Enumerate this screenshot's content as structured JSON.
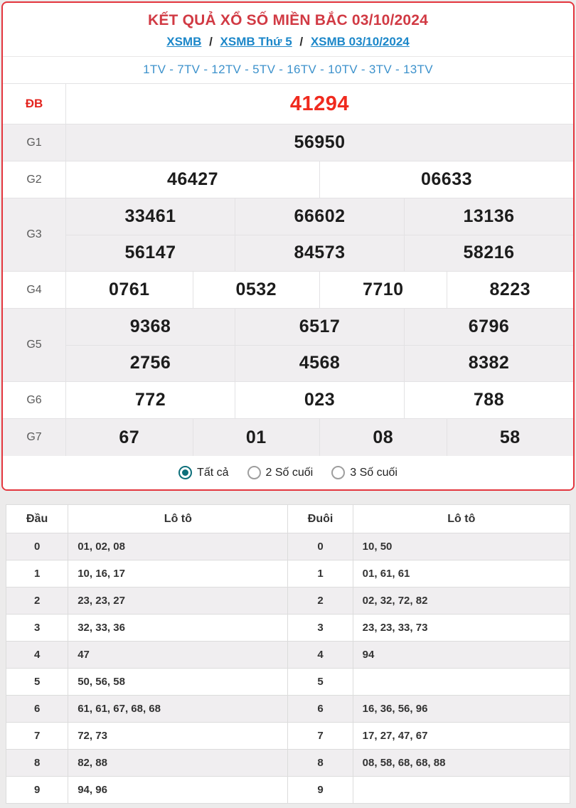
{
  "header": {
    "title": "KẾT QUẢ XỔ SỐ MIỀN BẮC 03/10/2024",
    "breadcrumb": [
      "XSMB",
      "XSMB Thứ 5",
      "XSMB 03/10/2024"
    ],
    "separator": "/",
    "tv_line": "1TV - 7TV - 12TV - 5TV - 16TV - 10TV - 3TV - 13TV"
  },
  "results": {
    "rows": [
      {
        "label": "ĐB",
        "special": true,
        "groups": [
          [
            "41294"
          ]
        ]
      },
      {
        "label": "G1",
        "special": false,
        "groups": [
          [
            "56950"
          ]
        ]
      },
      {
        "label": "G2",
        "special": false,
        "groups": [
          [
            "46427",
            "06633"
          ]
        ]
      },
      {
        "label": "G3",
        "special": false,
        "groups": [
          [
            "33461",
            "66602",
            "13136"
          ],
          [
            "56147",
            "84573",
            "58216"
          ]
        ]
      },
      {
        "label": "G4",
        "special": false,
        "groups": [
          [
            "0761",
            "0532",
            "7710",
            "8223"
          ]
        ]
      },
      {
        "label": "G5",
        "special": false,
        "groups": [
          [
            "9368",
            "6517",
            "6796"
          ],
          [
            "2756",
            "4568",
            "8382"
          ]
        ]
      },
      {
        "label": "G6",
        "special": false,
        "groups": [
          [
            "772",
            "023",
            "788"
          ]
        ]
      },
      {
        "label": "G7",
        "special": false,
        "groups": [
          [
            "67",
            "01",
            "08",
            "58"
          ]
        ]
      }
    ]
  },
  "filters": {
    "options": [
      {
        "label": "Tất cả",
        "selected": true
      },
      {
        "label": "2 Số cuối",
        "selected": false
      },
      {
        "label": "3 Số cuối",
        "selected": false
      }
    ]
  },
  "loto": {
    "headers": [
      "Đầu",
      "Lô tô",
      "Đuôi",
      "Lô tô"
    ],
    "rows": [
      {
        "dau": "0",
        "dau_loto": "01, 02, 08",
        "duoi": "0",
        "duoi_loto": "10, 50"
      },
      {
        "dau": "1",
        "dau_loto": "10, 16, 17",
        "duoi": "1",
        "duoi_loto": "01, 61, 61"
      },
      {
        "dau": "2",
        "dau_loto": "23, 23, 27",
        "duoi": "2",
        "duoi_loto": "02, 32, 72, 82"
      },
      {
        "dau": "3",
        "dau_loto": "32, 33, 36",
        "duoi": "3",
        "duoi_loto": "23, 23, 33, 73"
      },
      {
        "dau": "4",
        "dau_loto": "47",
        "duoi": "4",
        "duoi_loto": "94"
      },
      {
        "dau": "5",
        "dau_loto": "50, 56, 58",
        "duoi": "5",
        "duoi_loto": ""
      },
      {
        "dau": "6",
        "dau_loto": "61, 61, 67, 68, 68",
        "duoi": "6",
        "duoi_loto": "16, 36, 56, 96"
      },
      {
        "dau": "7",
        "dau_loto": "72, 73",
        "duoi": "7",
        "duoi_loto": "17, 27, 47, 67"
      },
      {
        "dau": "8",
        "dau_loto": "82, 88",
        "duoi": "8",
        "duoi_loto": "08, 58, 68, 68, 88"
      },
      {
        "dau": "9",
        "dau_loto": "94, 96",
        "duoi": "9",
        "duoi_loto": ""
      }
    ]
  },
  "colors": {
    "card_border": "#e3353d",
    "title_red": "#d13a44",
    "special_red": "#f02a1e",
    "link_blue": "#1c87c9",
    "tv_blue": "#3d92cc",
    "radio_teal": "#0d6f7a",
    "shaded_row": "#f0eef0"
  }
}
